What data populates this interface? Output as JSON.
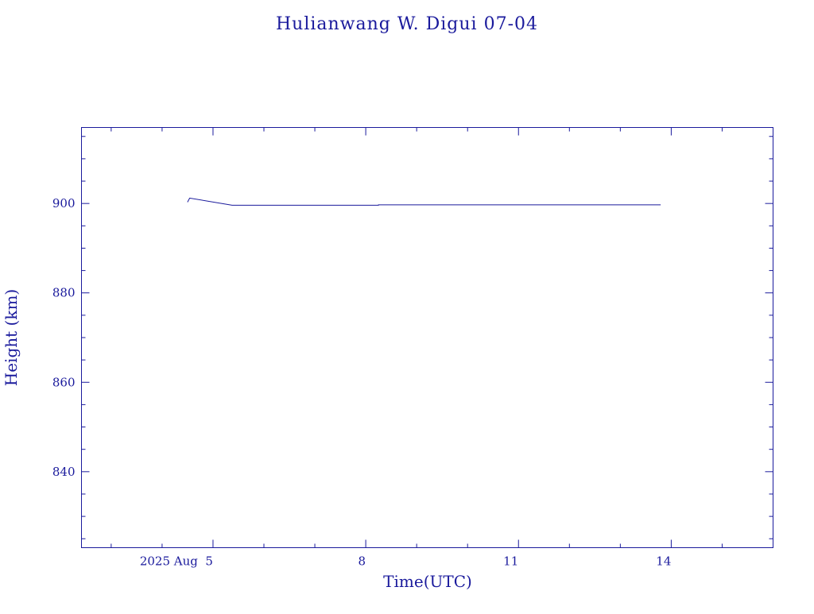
{
  "chart_data": {
    "type": "line",
    "title": "Hulianwang W. Digui 07-04",
    "xlabel": "Time(UTC)",
    "ylabel": "Height (km)",
    "x_range": [
      "2025-08-02T10:00",
      "2025-08-16T00:00"
    ],
    "ylim": [
      823,
      917
    ],
    "x_ticks": [
      {
        "date": "2025-08-05",
        "label": "2025 Aug  5"
      },
      {
        "date": "2025-08-08",
        "label": "8"
      },
      {
        "date": "2025-08-11",
        "label": "11"
      },
      {
        "date": "2025-08-14",
        "label": "14"
      }
    ],
    "x_minor_days": [
      "2025-08-03",
      "2025-08-04",
      "2025-08-06",
      "2025-08-07",
      "2025-08-09",
      "2025-08-10",
      "2025-08-12",
      "2025-08-13",
      "2025-08-15"
    ],
    "y_ticks": [
      840,
      860,
      880,
      900
    ],
    "y_minor_step": 5,
    "grid": false,
    "color": "#1a1a9c",
    "series": [
      {
        "points": [
          {
            "t": "2025-08-04T12:00",
            "y": 900.3
          },
          {
            "t": "2025-08-04T13:00",
            "y": 901.2
          },
          {
            "t": "2025-08-05T09:00",
            "y": 899.6
          },
          {
            "t": "2025-08-08T06:00",
            "y": 899.6
          },
          {
            "t": "2025-08-08T06:00",
            "y": 899.7
          },
          {
            "t": "2025-08-13T19:00",
            "y": 899.7
          }
        ]
      }
    ]
  }
}
